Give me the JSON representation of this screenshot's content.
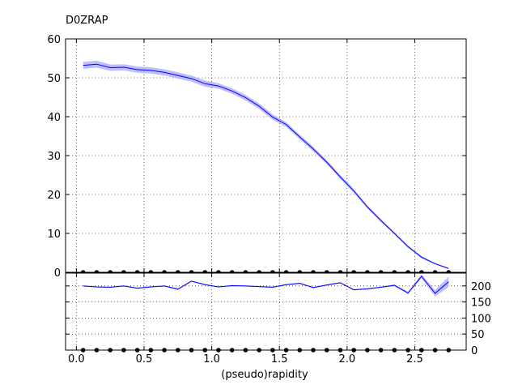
{
  "chart_data": {
    "title": "D0ZRAP",
    "xlabel": "(pseudo)rapidity",
    "x_ticks": [
      "0.0",
      "0.5",
      "1.0",
      "1.5",
      "2.0",
      "2.5"
    ],
    "xlim": [
      -0.08,
      2.88
    ],
    "grid": true,
    "colors": {
      "line": "#0000ff",
      "band": "#b3b3ff",
      "marker": "#000000"
    },
    "top": {
      "type": "line",
      "ylim": [
        0,
        60
      ],
      "y_ticks": [
        "0",
        "10",
        "20",
        "30",
        "40",
        "50",
        "60"
      ],
      "x": [
        0.05,
        0.15,
        0.25,
        0.35,
        0.45,
        0.55,
        0.65,
        0.75,
        0.85,
        0.95,
        1.05,
        1.15,
        1.25,
        1.35,
        1.45,
        1.55,
        1.65,
        1.75,
        1.85,
        1.95,
        2.05,
        2.15,
        2.25,
        2.35,
        2.45,
        2.55,
        2.65,
        2.75
      ],
      "values": [
        53.2,
        53.5,
        52.6,
        52.7,
        52.1,
        51.9,
        51.4,
        50.6,
        49.8,
        48.5,
        47.9,
        46.6,
        44.9,
        42.7,
        39.9,
        38.0,
        34.8,
        31.7,
        28.3,
        24.5,
        20.9,
        16.8,
        13.3,
        10.0,
        6.6,
        3.9,
        2.2,
        1.0
      ],
      "band_err": [
        0.9,
        0.9,
        0.8,
        0.8,
        0.8,
        0.8,
        0.8,
        0.8,
        0.8,
        0.8,
        0.7,
        0.7,
        0.7,
        0.7,
        0.7,
        0.6,
        0.6,
        0.6,
        0.5,
        0.5,
        0.5,
        0.4,
        0.4,
        0.3,
        0.3,
        0.3,
        0.2,
        0.2
      ],
      "markers_x": [
        0.05,
        0.15,
        0.25,
        0.35,
        0.45,
        0.55,
        0.65,
        0.75,
        0.85,
        0.95,
        1.05,
        1.15,
        1.25,
        1.35,
        1.45,
        1.55,
        1.65,
        1.75,
        1.85,
        1.95,
        2.05,
        2.15,
        2.25,
        2.35,
        2.45,
        2.55,
        2.65,
        2.75
      ],
      "markers_y": [
        0,
        0,
        0,
        0,
        0,
        0,
        0,
        0,
        0,
        0,
        0,
        0,
        0,
        0,
        0,
        0,
        0,
        0,
        0,
        0,
        0,
        0,
        0,
        0,
        0,
        0,
        0,
        0
      ]
    },
    "bottom": {
      "type": "line",
      "ylim": [
        0,
        240
      ],
      "y_ticks": [
        "0",
        "50",
        "100",
        "150",
        "200"
      ],
      "x": [
        0.05,
        0.15,
        0.25,
        0.35,
        0.45,
        0.55,
        0.65,
        0.75,
        0.85,
        0.95,
        1.05,
        1.15,
        1.25,
        1.35,
        1.45,
        1.55,
        1.65,
        1.75,
        1.85,
        1.95,
        2.05,
        2.15,
        2.25,
        2.35,
        2.45,
        2.55,
        2.65,
        2.75
      ],
      "values": [
        200,
        197,
        196,
        200,
        193,
        197,
        200,
        190,
        215,
        204,
        197,
        201,
        200,
        198,
        196,
        204,
        208,
        195,
        203,
        210,
        188,
        191,
        196,
        202,
        178,
        230,
        177,
        213
      ],
      "band_err": [
        2,
        2,
        2,
        2,
        2,
        2,
        2,
        2,
        2,
        2,
        2,
        2,
        2,
        2,
        2,
        2,
        2,
        2,
        2,
        2,
        2,
        2,
        2,
        3,
        4,
        6,
        10,
        16
      ],
      "markers_x": [
        0.05,
        0.15,
        0.25,
        0.35,
        0.45,
        0.55,
        0.65,
        0.75,
        0.85,
        0.95,
        1.05,
        1.15,
        1.25,
        1.35,
        1.45,
        1.55,
        1.65,
        1.75,
        1.85,
        1.95,
        2.05,
        2.15,
        2.25,
        2.35,
        2.45,
        2.55,
        2.65,
        2.75
      ],
      "markers_y": [
        0,
        0,
        0,
        0,
        0,
        0,
        0,
        0,
        0,
        0,
        0,
        0,
        0,
        0,
        0,
        0,
        0,
        0,
        0,
        0,
        0,
        0,
        0,
        0,
        0,
        0,
        0,
        0
      ]
    }
  }
}
